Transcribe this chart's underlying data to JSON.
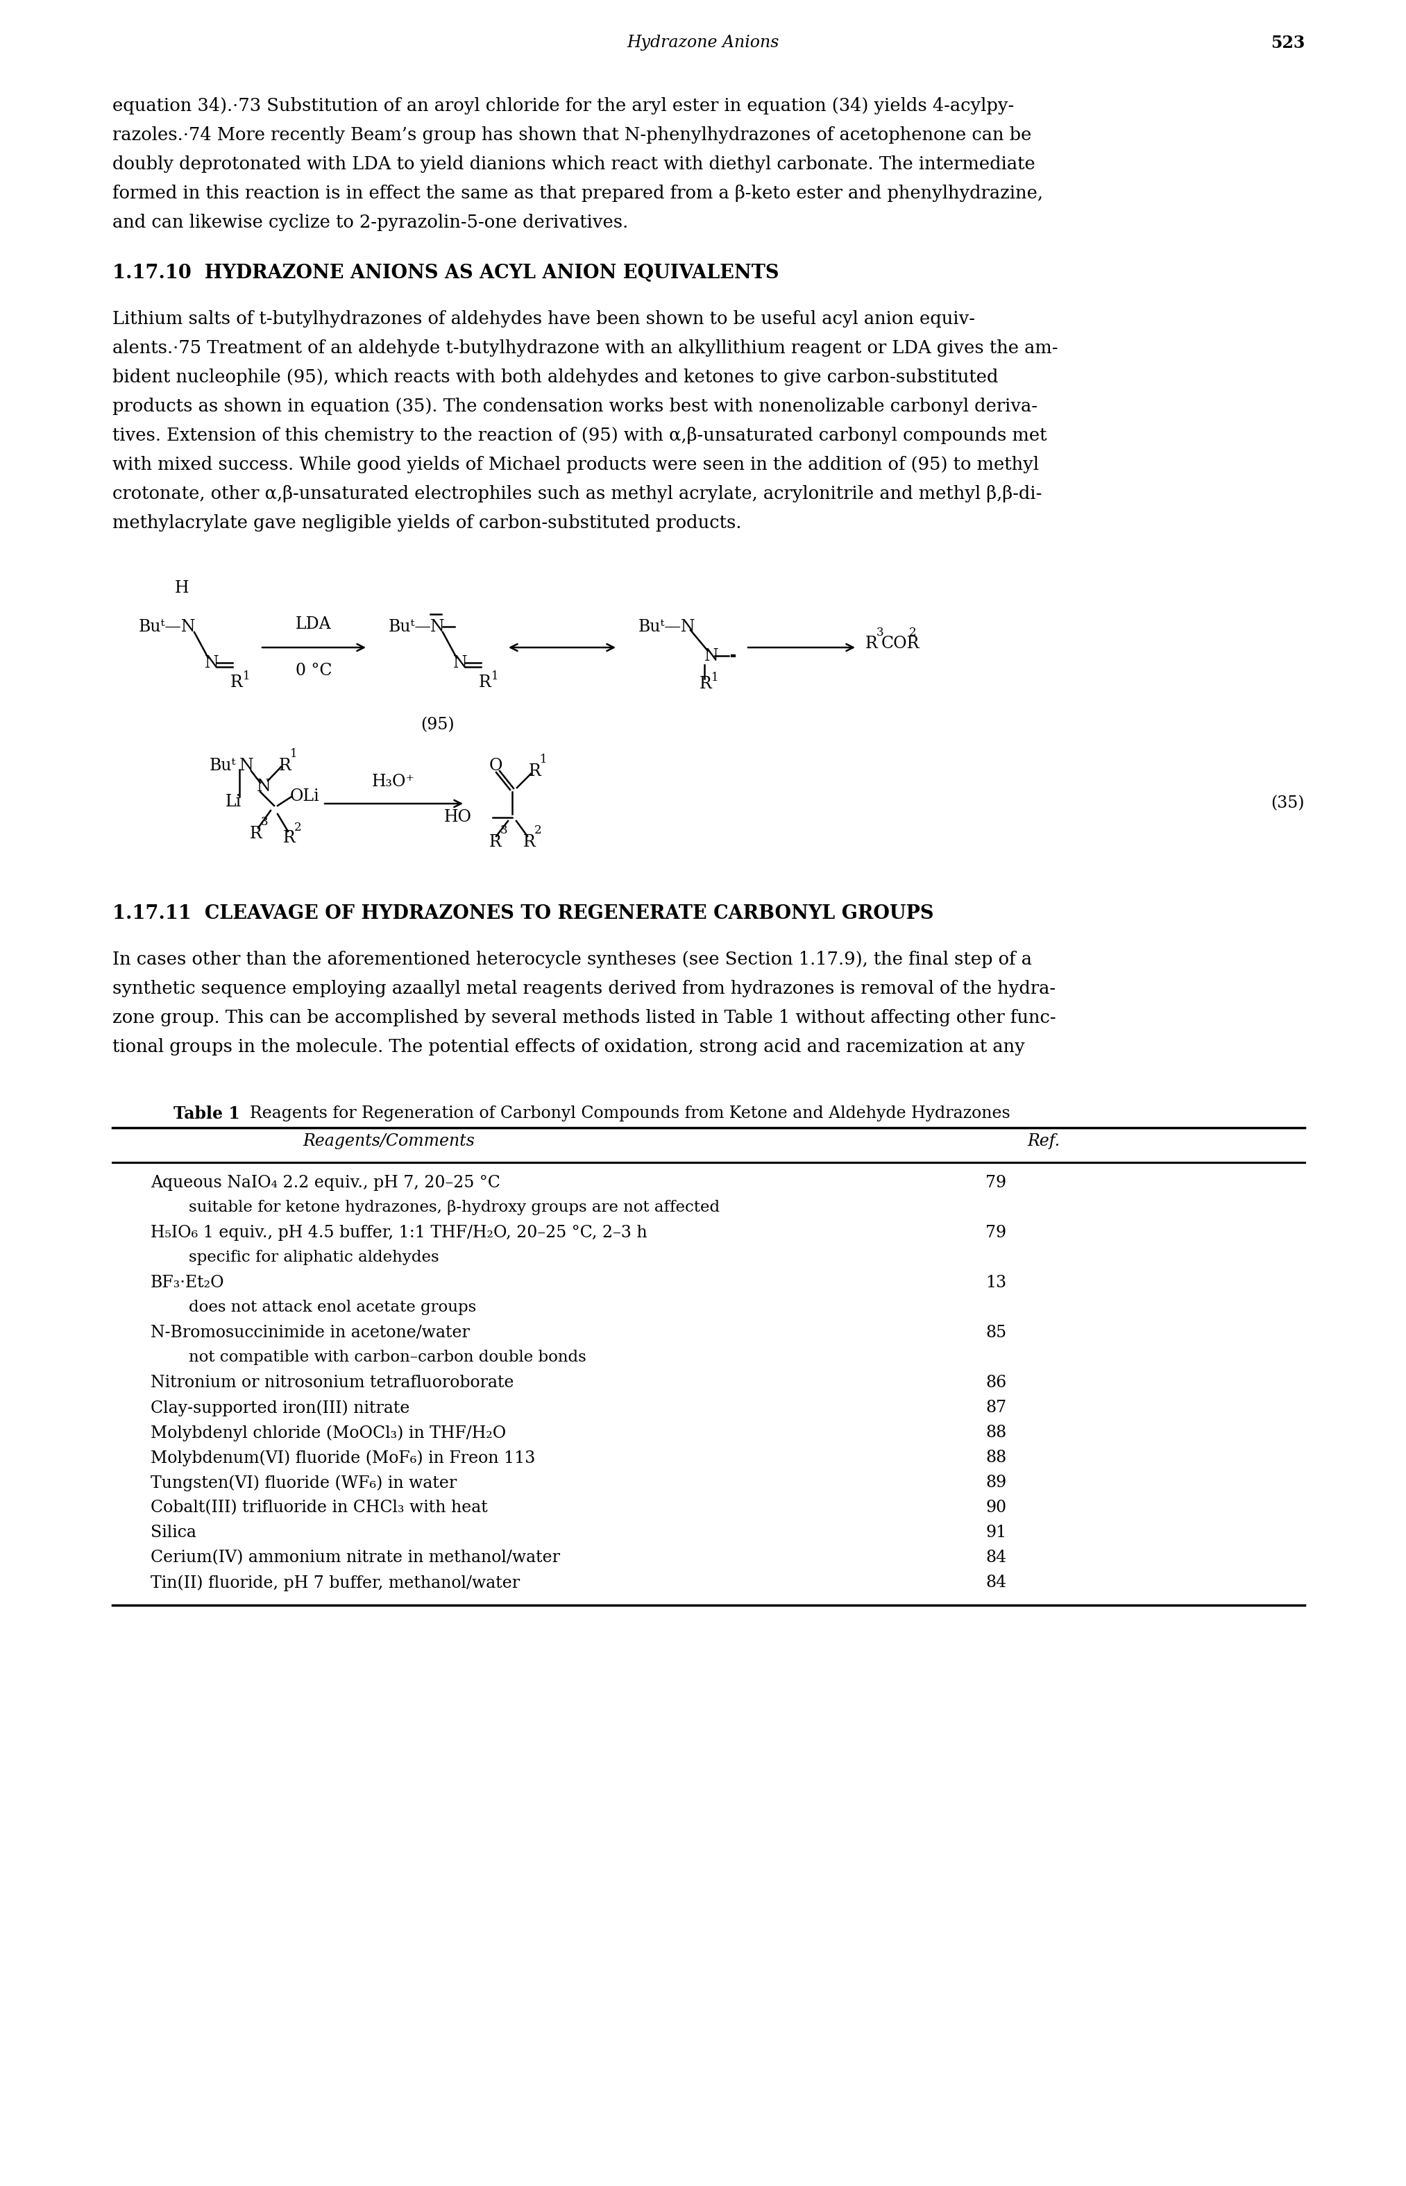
{
  "page_header_title": "Hydrazone Anions",
  "page_header_number": "523",
  "p1_lines": [
    "equation 34).·73 Substitution of an aroyl chloride for the aryl ester in equation (34) yields 4-acylpy-",
    "razoles.·74 More recently Beam’s group has shown that N-phenylhydrazones of acetophenone can be",
    "doubly deprotonated with LDA to yield dianions which react with diethyl carbonate. The intermediate",
    "formed in this reaction is in effect the same as that prepared from a β-keto ester and phenylhydrazine,",
    "and can likewise cyclize to 2-pyrazolin-5-one derivatives."
  ],
  "sec1_heading": "1.17.10  HYDRAZONE ANIONS AS ACYL ANION EQUIVALENTS",
  "p2_lines": [
    "Lithium salts of t-butylhydrazones of aldehydes have been shown to be useful acyl anion equiv-",
    "alents.·75 Treatment of an aldehyde t-butylhydrazone with an alkyllithium reagent or LDA gives the am-",
    "bident nucleophile (95), which reacts with both aldehydes and ketones to give carbon-substituted",
    "products as shown in equation (35). The condensation works best with nonenolizable carbonyl deriva-",
    "tives. Extension of this chemistry to the reaction of (95) with α,β-unsaturated carbonyl compounds met",
    "with mixed success. While good yields of Michael products were seen in the addition of (95) to methyl",
    "crotonate, other α,β-unsaturated electrophiles such as methyl acrylate, acrylonitrile and methyl β,β-di-",
    "methylacrylate gave negligible yields of carbon-substituted products."
  ],
  "sec2_heading": "1.17.11  CLEAVAGE OF HYDRAZONES TO REGENERATE CARBONYL GROUPS",
  "p3_lines": [
    "In cases other than the aforementioned heterocycle syntheses (see Section 1.17.9), the final step of a",
    "synthetic sequence employing azaallyl metal reagents derived from hydrazones is removal of the hydra-",
    "zone group. This can be accomplished by several methods listed in Table 1 without affecting other func-",
    "tional groups in the molecule. The potential effects of oxidation, strong acid and racemization at any"
  ],
  "table_title_bold": "Table 1",
  "table_title_rest": "  Reagents for Regeneration of Carbonyl Compounds from Ketone and Aldehyde Hydrazones",
  "col_header1": "Reagents/Comments",
  "col_header2": "Ref.",
  "table_rows": [
    {
      "reagent": "Aqueous NaIO₄ 2.2 equiv., pH 7, 20–25 °C",
      "ref": "79",
      "indent": false
    },
    {
      "reagent": "suitable for ketone hydrazones, β-hydroxy groups are not affected",
      "ref": "",
      "indent": true
    },
    {
      "reagent": "H₅IO₆ 1 equiv., pH 4.5 buffer, 1:1 THF/H₂O, 20–25 °C, 2–3 h",
      "ref": "79",
      "indent": false
    },
    {
      "reagent": "specific for aliphatic aldehydes",
      "ref": "",
      "indent": true
    },
    {
      "reagent": "BF₃·Et₂O",
      "ref": "13",
      "indent": false
    },
    {
      "reagent": "does not attack enol acetate groups",
      "ref": "",
      "indent": true
    },
    {
      "reagent": "N-Bromosuccinimide in acetone/water",
      "ref": "85",
      "indent": false
    },
    {
      "reagent": "not compatible with carbon–carbon double bonds",
      "ref": "",
      "indent": true
    },
    {
      "reagent": "Nitronium or nitrosonium tetrafluoroborate",
      "ref": "86",
      "indent": false
    },
    {
      "reagent": "Clay-supported iron(III) nitrate",
      "ref": "87",
      "indent": false
    },
    {
      "reagent": "Molybdenyl chloride (MoOCl₃) in THF/H₂O",
      "ref": "88",
      "indent": false
    },
    {
      "reagent": "Molybdenum(VI) fluoride (MoF₆) in Freon 113",
      "ref": "88",
      "indent": false
    },
    {
      "reagent": "Tungsten(VI) fluoride (WF₆) in water",
      "ref": "89",
      "indent": false
    },
    {
      "reagent": "Cobalt(III) trifluoride in CHCl₃ with heat",
      "ref": "90",
      "indent": false
    },
    {
      "reagent": "Silica",
      "ref": "91",
      "indent": false
    },
    {
      "reagent": "Cerium(IV) ammonium nitrate in methanol/water",
      "ref": "84",
      "indent": false
    },
    {
      "reagent": "Tin(II) fluoride, pH 7 buffer, methanol/water",
      "ref": "84",
      "indent": false
    }
  ]
}
